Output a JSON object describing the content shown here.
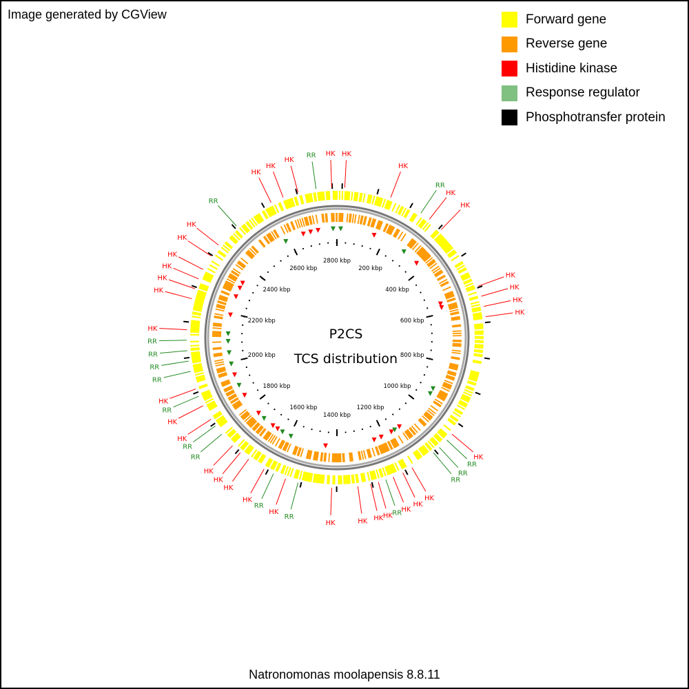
{
  "header": {
    "text": "Image generated by CGView"
  },
  "legend": [
    {
      "label": "Forward gene",
      "color": "#ffff00"
    },
    {
      "label": "Reverse gene",
      "color": "#ff9900"
    },
    {
      "label": "Histidine kinase",
      "color": "#ff0000"
    },
    {
      "label": "Response regulator",
      "color": "#80c080"
    },
    {
      "label": "Phosphotransfer protein",
      "color": "#000000"
    }
  ],
  "center": {
    "title": "P2CS",
    "subtitle": "TCS distribution"
  },
  "footer": {
    "text": "Natronomonas moolapensis 8.8.11"
  },
  "genome": {
    "tick_labels": [
      "200 kbp",
      "400 kbp",
      "600 kbp",
      "800 kbp",
      "1000 kbp",
      "1200 kbp",
      "1400 kbp",
      "1600 kbp",
      "1800 kbp",
      "2000 kbp",
      "2200 kbp",
      "2400 kbp",
      "2600 kbp",
      "2800 kbp"
    ],
    "tick_angles_deg": [
      25.7,
      51.4,
      77.1,
      102.9,
      128.6,
      154.3,
      180,
      205.7,
      231.4,
      257.1,
      282.9,
      308.6,
      334.3,
      0
    ],
    "tcs_labels": [
      {
        "text": "HK",
        "type": "HK",
        "angle": 3
      },
      {
        "text": "HK",
        "type": "HK",
        "angle": 21
      },
      {
        "text": "RR",
        "type": "RR",
        "angle": 34
      },
      {
        "text": "HK",
        "type": "HK",
        "angle": 38
      },
      {
        "text": "HK",
        "type": "HK",
        "angle": 44
      },
      {
        "text": "HK",
        "type": "HK",
        "angle": 70
      },
      {
        "text": "HK",
        "type": "HK",
        "angle": 74
      },
      {
        "text": "HK",
        "type": "HK",
        "angle": 78
      },
      {
        "text": "HK",
        "type": "HK",
        "angle": 82
      },
      {
        "text": "HK",
        "type": "HK",
        "angle": 130
      },
      {
        "text": "RR",
        "type": "RR",
        "angle": 133
      },
      {
        "text": "RR",
        "type": "RR",
        "angle": 137
      },
      {
        "text": "RR",
        "type": "RR",
        "angle": 140
      },
      {
        "text": "HK",
        "type": "HK",
        "angle": 150
      },
      {
        "text": "HK",
        "type": "HK",
        "angle": 154
      },
      {
        "text": "HK",
        "type": "HK",
        "angle": 158
      },
      {
        "text": "RR",
        "type": "RR",
        "angle": 161
      },
      {
        "text": "HK",
        "type": "HK",
        "angle": 164
      },
      {
        "text": "HK",
        "type": "HK",
        "angle": 167
      },
      {
        "text": "HK",
        "type": "HK",
        "angle": 172
      },
      {
        "text": "HK",
        "type": "HK",
        "angle": 182
      },
      {
        "text": "RR",
        "type": "RR",
        "angle": 195
      },
      {
        "text": "HK",
        "type": "HK",
        "angle": 200
      },
      {
        "text": "RR",
        "type": "RR",
        "angle": 205
      },
      {
        "text": "HK",
        "type": "HK",
        "angle": 209
      },
      {
        "text": "HK",
        "type": "HK",
        "angle": 216
      },
      {
        "text": "HK",
        "type": "HK",
        "angle": 220
      },
      {
        "text": "HK",
        "type": "HK",
        "angle": 224
      },
      {
        "text": "RR",
        "type": "RR",
        "angle": 230
      },
      {
        "text": "RR",
        "type": "RR",
        "angle": 234
      },
      {
        "text": "HK",
        "type": "HK",
        "angle": 237
      },
      {
        "text": "HK",
        "type": "HK",
        "angle": 243
      },
      {
        "text": "RR",
        "type": "RR",
        "angle": 247
      },
      {
        "text": "HK",
        "type": "HK",
        "angle": 250
      },
      {
        "text": "RR",
        "type": "RR",
        "angle": 257
      },
      {
        "text": "RR",
        "type": "RR",
        "angle": 261
      },
      {
        "text": "RR",
        "type": "RR",
        "angle": 265
      },
      {
        "text": "RR",
        "type": "RR",
        "angle": 269
      },
      {
        "text": "HK",
        "type": "HK",
        "angle": 273
      },
      {
        "text": "HK",
        "type": "HK",
        "angle": 285
      },
      {
        "text": "HK",
        "type": "HK",
        "angle": 289
      },
      {
        "text": "HK",
        "type": "HK",
        "angle": 293
      },
      {
        "text": "HK",
        "type": "HK",
        "angle": 297
      },
      {
        "text": "HK",
        "type": "HK",
        "angle": 303
      },
      {
        "text": "HK",
        "type": "HK",
        "angle": 308
      },
      {
        "text": "RR",
        "type": "RR",
        "angle": 318
      },
      {
        "text": "HK",
        "type": "HK",
        "angle": 334
      },
      {
        "text": "HK",
        "type": "HK",
        "angle": 339
      },
      {
        "text": "HK",
        "type": "HK",
        "angle": 345
      },
      {
        "text": "RR",
        "type": "RR",
        "angle": 352
      },
      {
        "text": "HK",
        "type": "HK",
        "angle": 358
      }
    ],
    "tcs_markers": [
      {
        "type": "HK",
        "angle": 47
      },
      {
        "type": "RR",
        "angle": 38
      },
      {
        "type": "HK",
        "angle": 20
      },
      {
        "type": "HK",
        "angle": -18
      },
      {
        "type": "HK",
        "angle": -14
      },
      {
        "type": "HK",
        "angle": -10
      },
      {
        "type": "RR",
        "angle": -2
      },
      {
        "type": "RR",
        "angle": 2
      },
      {
        "type": "HK",
        "angle": 72
      },
      {
        "type": "HK",
        "angle": 74
      },
      {
        "type": "RR",
        "angle": 118
      },
      {
        "type": "RR",
        "angle": 121
      },
      {
        "type": "HK",
        "angle": 145
      },
      {
        "type": "HK",
        "angle": 150
      },
      {
        "type": "RR",
        "angle": 148
      },
      {
        "type": "HK",
        "angle": 156
      },
      {
        "type": "HK",
        "angle": 160
      },
      {
        "type": "HK",
        "angle": 186
      },
      {
        "type": "RR",
        "angle": 205
      },
      {
        "type": "RR",
        "angle": 210
      },
      {
        "type": "HK",
        "angle": 213
      },
      {
        "type": "HK",
        "angle": 216
      },
      {
        "type": "RR",
        "angle": 222
      },
      {
        "type": "HK",
        "angle": 226
      },
      {
        "type": "HK",
        "angle": 238
      },
      {
        "type": "RR",
        "angle": 244
      },
      {
        "type": "HK",
        "angle": 250
      },
      {
        "type": "RR",
        "angle": 256
      },
      {
        "type": "RR",
        "angle": 262
      },
      {
        "type": "RR",
        "angle": 268
      },
      {
        "type": "RR",
        "angle": 272
      },
      {
        "type": "HK",
        "angle": 282
      },
      {
        "type": "HK",
        "angle": 292
      },
      {
        "type": "HK",
        "angle": 297
      },
      {
        "type": "HK",
        "angle": 300
      },
      {
        "type": "RR",
        "angle": 332
      }
    ]
  }
}
